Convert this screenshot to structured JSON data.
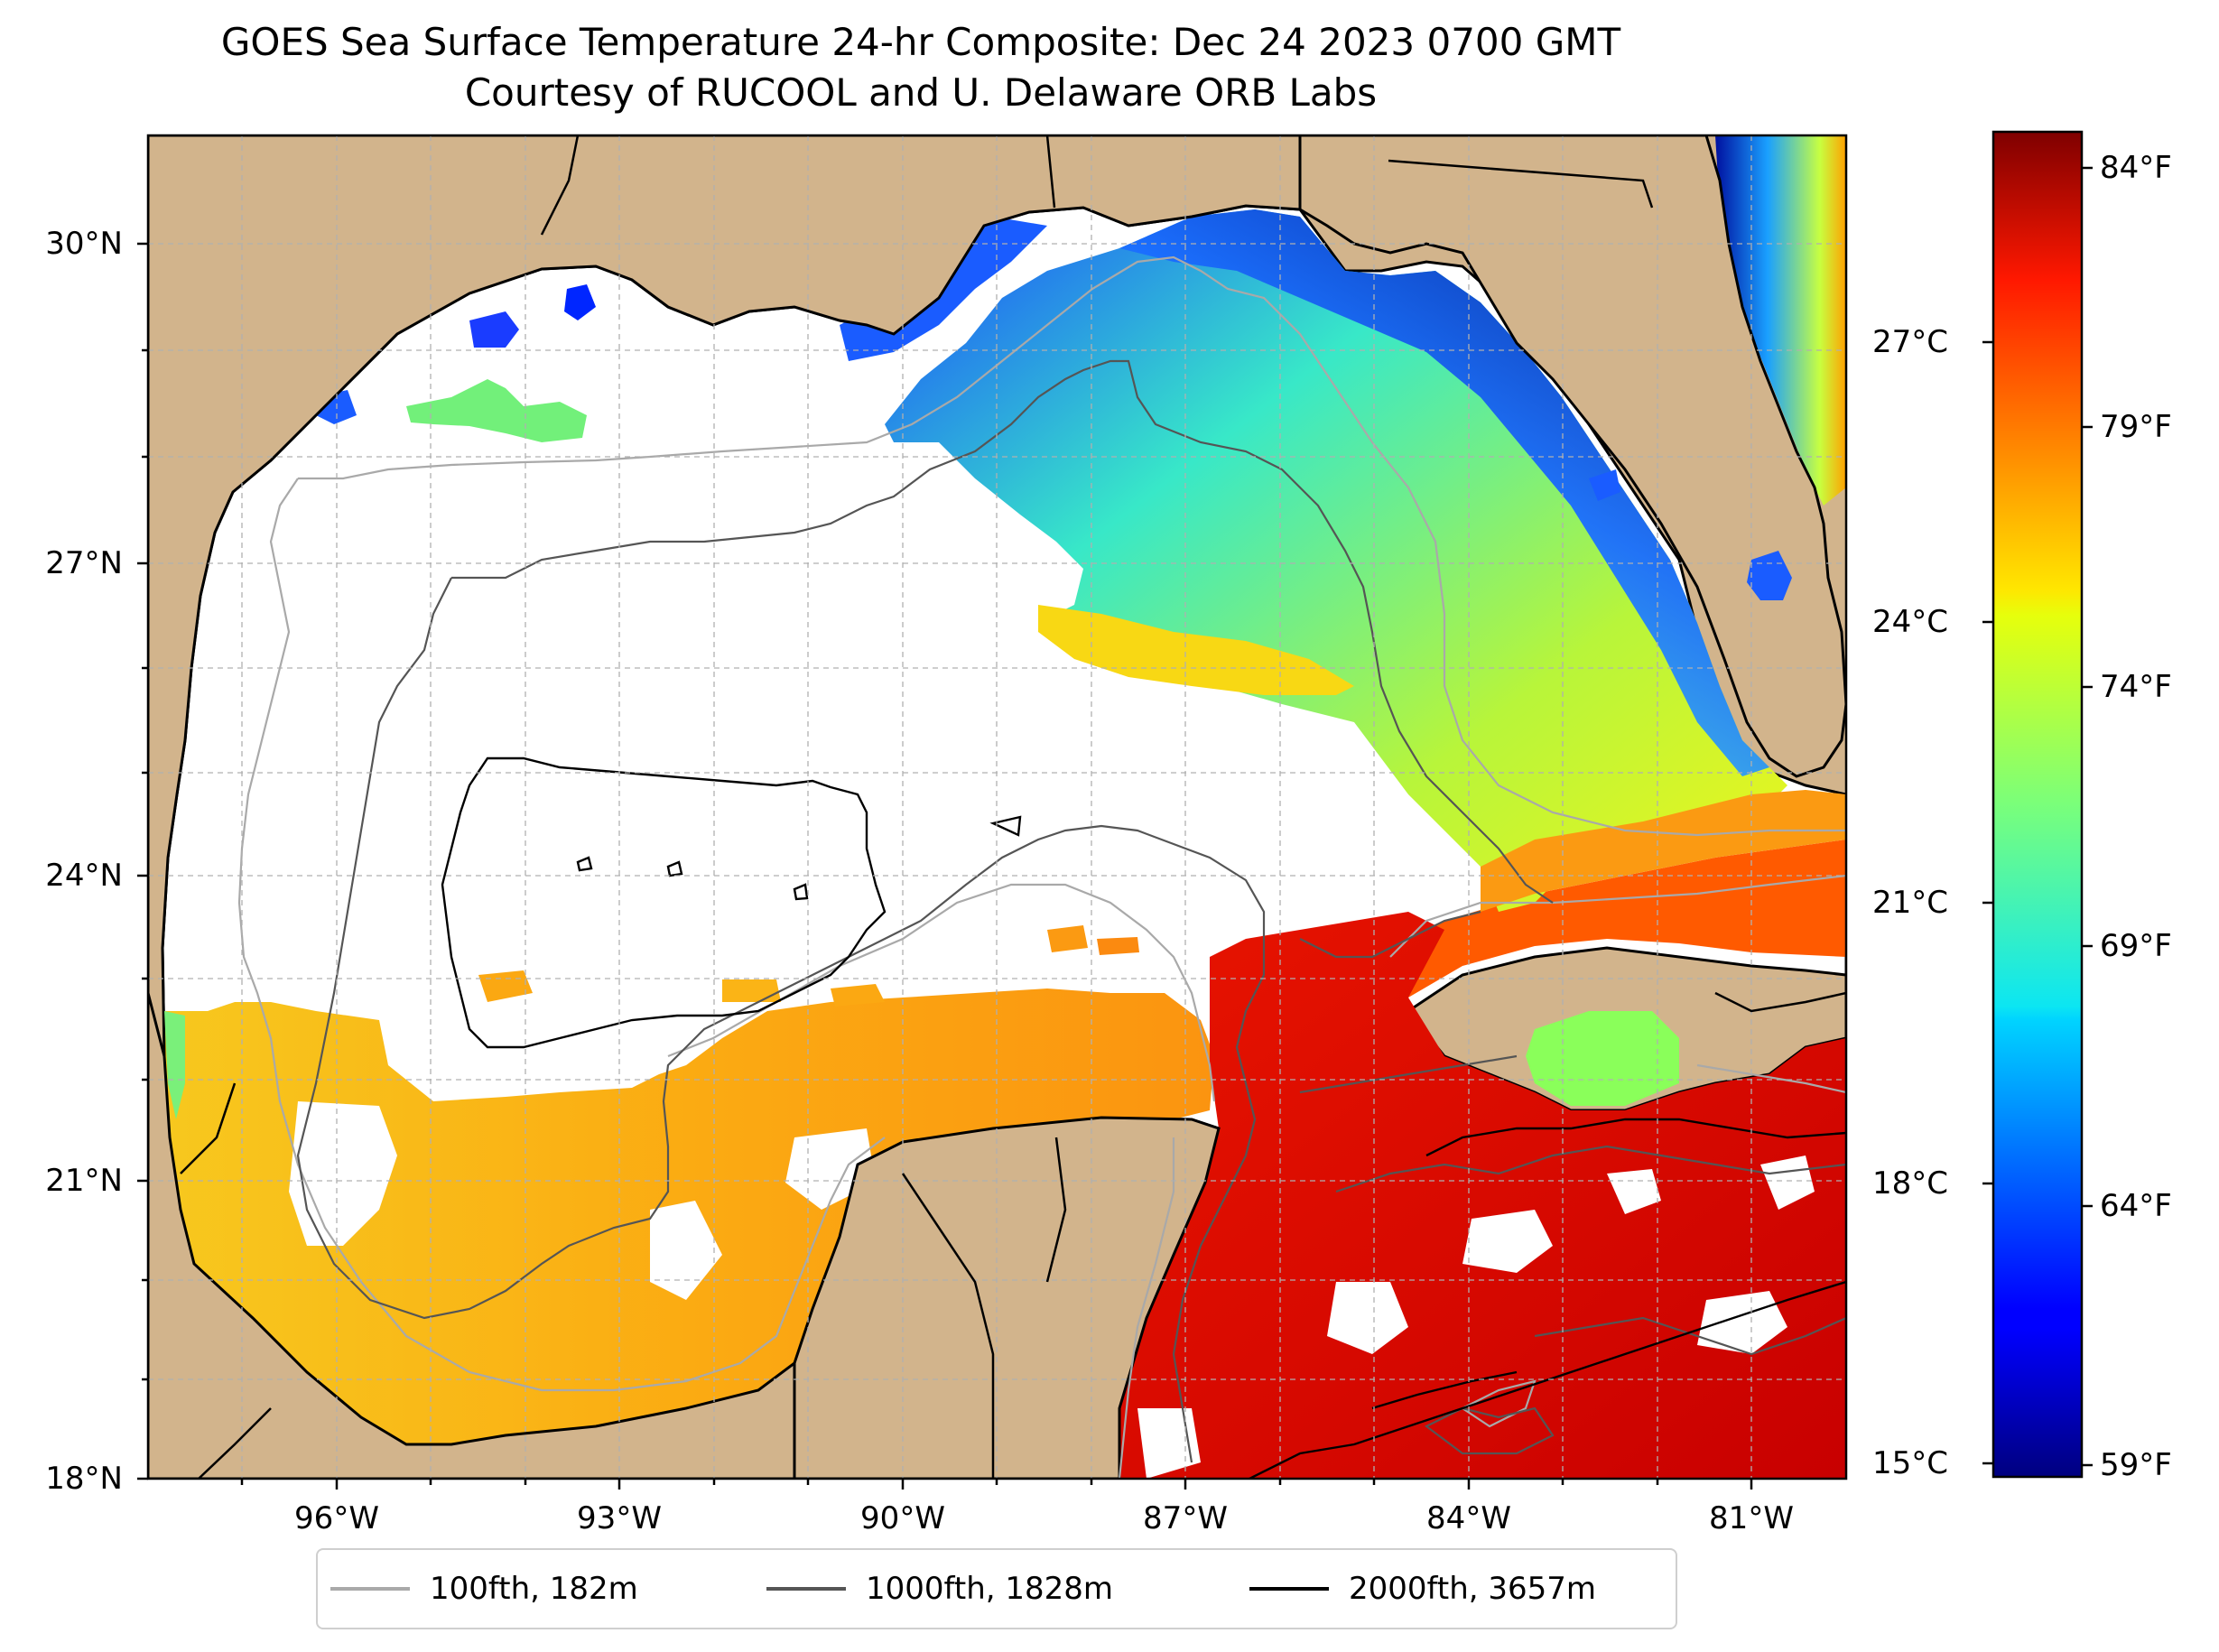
{
  "title": {
    "line1": "GOES Sea Surface Temperature 24-hr Composite: Dec 24 2023 0700 GMT",
    "line2": "Courtesy of RUCOOL and U. Delaware ORB Labs"
  },
  "map": {
    "lat_ticks": [
      "30°N",
      "27°N",
      "24°N",
      "21°N",
      "18°N"
    ],
    "lon_ticks": [
      "96°W",
      "93°W",
      "90°W",
      "87°W",
      "84°W",
      "81°W"
    ],
    "land_color": "#d2b48c",
    "no_data_color": "#ffffff",
    "gridlines": true
  },
  "colorbar": {
    "colormap": "jet",
    "celsius_ticks": [
      "27°C",
      "24°C",
      "21°C",
      "18°C",
      "15°C"
    ],
    "fahrenheit_ticks": [
      "84°F",
      "79°F",
      "74°F",
      "69°F",
      "64°F",
      "59°F"
    ]
  },
  "legend": {
    "items": [
      {
        "label": "100fth, 182m",
        "color": "#a9a9a9"
      },
      {
        "label": "1000fth, 1828m",
        "color": "#555555"
      },
      {
        "label": "2000fth, 3657m",
        "color": "#000000"
      }
    ]
  }
}
